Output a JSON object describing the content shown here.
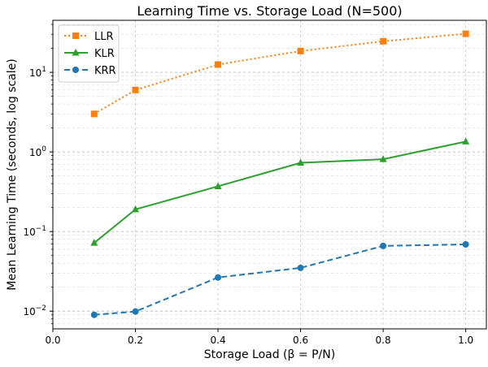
{
  "chart_data": {
    "type": "line",
    "title": "Learning Time vs. Storage Load (N=500)",
    "xlabel": "Storage Load (β = P/N)",
    "ylabel": "Mean Learning Time (seconds, log scale)",
    "x": [
      0.1,
      0.2,
      0.4,
      0.6,
      0.8,
      1.0
    ],
    "xlim": [
      0.0,
      1.05
    ],
    "ylim": [
      0.006,
      45
    ],
    "yscale": "log",
    "xticks": [
      "0.0",
      "0.2",
      "0.4",
      "0.6",
      "0.8",
      "1.0"
    ],
    "yticks": [
      {
        "value": 0.01,
        "base": "10",
        "exp": "−2"
      },
      {
        "value": 0.1,
        "base": "10",
        "exp": "−1"
      },
      {
        "value": 1,
        "base": "10",
        "exp": "0"
      },
      {
        "value": 10,
        "base": "10",
        "exp": "1"
      }
    ],
    "grid": true,
    "legend_position": "top-left",
    "series": [
      {
        "name": "LLR",
        "values": [
          3.0,
          6.0,
          12.5,
          18.5,
          24.5,
          30.5
        ],
        "color": "#ff7f0e",
        "marker": "square",
        "linestyle": "dotted"
      },
      {
        "name": "KLR",
        "values": [
          0.072,
          0.19,
          0.37,
          0.73,
          0.81,
          1.35
        ],
        "color": "#2ca02c",
        "marker": "triangle",
        "linestyle": "solid"
      },
      {
        "name": "KRR",
        "values": [
          0.009,
          0.0099,
          0.0265,
          0.035,
          0.066,
          0.069
        ],
        "color": "#1f77b4",
        "marker": "circle",
        "linestyle": "dashed"
      }
    ]
  }
}
